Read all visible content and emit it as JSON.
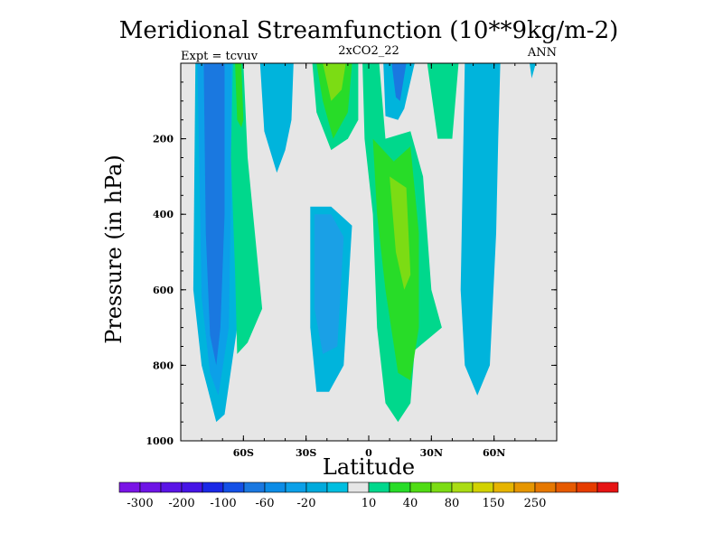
{
  "chart_data": {
    "type": "heatmap",
    "title": "Meridional Streamfunction (10**9kg/m-2)",
    "subtitle_left": "Expt = tcvuv",
    "subtitle_center": "2xCO2_22",
    "subtitle_right": "ANN",
    "xlabel": "Latitude",
    "ylabel": "Pressure (in hPa)",
    "xlim": [
      -90,
      90
    ],
    "ylim": [
      1000,
      0
    ],
    "y_reversed": true,
    "x_ticks": [
      {
        "value": -60,
        "label": "60S"
      },
      {
        "value": -30,
        "label": "30S"
      },
      {
        "value": 0,
        "label": "0"
      },
      {
        "value": 30,
        "label": "30N"
      },
      {
        "value": 60,
        "label": "60N"
      }
    ],
    "y_ticks": [
      {
        "value": 200,
        "label": "200"
      },
      {
        "value": 400,
        "label": "400"
      },
      {
        "value": 600,
        "label": "600"
      },
      {
        "value": 800,
        "label": "800"
      },
      {
        "value": 1000,
        "label": "1000"
      }
    ],
    "background_color": "#e6e6e6",
    "contour_regions": [
      {
        "level": -40,
        "color": "#00b4dc",
        "points": [
          [
            -83,
            0
          ],
          [
            -64,
            0
          ],
          [
            -63,
            300
          ],
          [
            -63,
            700
          ],
          [
            -69,
            930
          ],
          [
            -73,
            950
          ],
          [
            -80,
            800
          ],
          [
            -84,
            600
          ]
        ]
      },
      {
        "level": -60,
        "color": "#0ca0e8",
        "points": [
          [
            -82,
            0
          ],
          [
            -66,
            0
          ],
          [
            -66,
            350
          ],
          [
            -67,
            700
          ],
          [
            -72,
            880
          ],
          [
            -76,
            820
          ],
          [
            -80,
            620
          ]
        ]
      },
      {
        "level": -100,
        "color": "#1a78e0",
        "points": [
          [
            -79,
            0
          ],
          [
            -69,
            0
          ],
          [
            -69,
            400
          ],
          [
            -71,
            700
          ],
          [
            -73,
            800
          ],
          [
            -76,
            720
          ],
          [
            -78,
            450
          ]
        ]
      },
      {
        "level": 10,
        "color": "#00d88c",
        "points": [
          [
            -65,
            0
          ],
          [
            -60,
            0
          ],
          [
            -58,
            250
          ],
          [
            -51,
            650
          ],
          [
            -58,
            740
          ],
          [
            -63,
            770
          ],
          [
            -64,
            550
          ],
          [
            -66,
            250
          ]
        ]
      },
      {
        "level": 20,
        "color": "#28dc28",
        "points": [
          [
            -64,
            0
          ],
          [
            -61,
            0
          ],
          [
            -60,
            150
          ],
          [
            -61,
            170
          ],
          [
            -63,
            150
          ]
        ]
      },
      {
        "level": -20,
        "color": "#00b4dc",
        "points": [
          [
            -52,
            0
          ],
          [
            -36,
            0
          ],
          [
            -37,
            150
          ],
          [
            -40,
            230
          ],
          [
            -44,
            290
          ],
          [
            -50,
            180
          ]
        ]
      },
      {
        "level": -20,
        "color": "#00b4dc",
        "points": [
          [
            -28,
            380
          ],
          [
            -18,
            380
          ],
          [
            -8,
            430
          ],
          [
            -12,
            800
          ],
          [
            -19,
            870
          ],
          [
            -25,
            870
          ],
          [
            -28,
            700
          ],
          [
            -28,
            500
          ]
        ]
      },
      {
        "level": -40,
        "color": "#1aa0e6",
        "points": [
          [
            -26,
            400
          ],
          [
            -18,
            400
          ],
          [
            -12,
            460
          ],
          [
            -15,
            750
          ],
          [
            -22,
            770
          ],
          [
            -26,
            650
          ]
        ]
      },
      {
        "level": 10,
        "color": "#00d88c",
        "points": [
          [
            -27,
            0
          ],
          [
            -5,
            0
          ],
          [
            -5,
            150
          ],
          [
            -10,
            200
          ],
          [
            -18,
            230
          ],
          [
            -25,
            130
          ]
        ]
      },
      {
        "level": 20,
        "color": "#28dc28",
        "points": [
          [
            -25,
            0
          ],
          [
            -8,
            0
          ],
          [
            -10,
            130
          ],
          [
            -17,
            200
          ],
          [
            -22,
            100
          ]
        ]
      },
      {
        "level": 40,
        "color": "#7cdc14",
        "points": [
          [
            -22,
            0
          ],
          [
            -11,
            0
          ],
          [
            -13,
            70
          ],
          [
            -18,
            100
          ]
        ]
      },
      {
        "level": -20,
        "color": "#00b4dc",
        "points": [
          [
            7,
            0
          ],
          [
            22,
            0
          ],
          [
            17,
            120
          ],
          [
            14,
            150
          ],
          [
            8,
            140
          ]
        ]
      },
      {
        "level": -60,
        "color": "#1a78e0",
        "points": [
          [
            11,
            0
          ],
          [
            18,
            0
          ],
          [
            15,
            100
          ],
          [
            13,
            90
          ]
        ]
      },
      {
        "level": 10,
        "color": "#00d88c",
        "points": [
          [
            -3,
            0
          ],
          [
            5,
            0
          ],
          [
            8,
            200
          ],
          [
            20,
            180
          ],
          [
            26,
            300
          ],
          [
            30,
            600
          ],
          [
            35,
            700
          ],
          [
            22,
            760
          ],
          [
            20,
            900
          ],
          [
            14,
            950
          ],
          [
            8,
            900
          ],
          [
            4,
            700
          ],
          [
            2,
            400
          ],
          [
            -2,
            200
          ]
        ]
      },
      {
        "level": 20,
        "color": "#28dc28",
        "points": [
          [
            2,
            200
          ],
          [
            12,
            260
          ],
          [
            20,
            220
          ],
          [
            24,
            450
          ],
          [
            24,
            700
          ],
          [
            20,
            840
          ],
          [
            14,
            820
          ],
          [
            8,
            600
          ],
          [
            4,
            400
          ]
        ]
      },
      {
        "level": 40,
        "color": "#7cdc14",
        "points": [
          [
            10,
            300
          ],
          [
            18,
            330
          ],
          [
            20,
            560
          ],
          [
            17,
            600
          ],
          [
            13,
            500
          ]
        ]
      },
      {
        "level": 10,
        "color": "#00d88c",
        "points": [
          [
            28,
            0
          ],
          [
            43,
            0
          ],
          [
            40,
            200
          ],
          [
            33,
            200
          ]
        ]
      },
      {
        "level": -20,
        "color": "#00b4dc",
        "points": [
          [
            46,
            0
          ],
          [
            63,
            0
          ],
          [
            62,
            200
          ],
          [
            61,
            450
          ],
          [
            58,
            800
          ],
          [
            52,
            880
          ],
          [
            46,
            800
          ],
          [
            44,
            600
          ],
          [
            45,
            300
          ]
        ]
      },
      {
        "level": -20,
        "color": "#00b4dc",
        "points": [
          [
            77,
            0
          ],
          [
            80,
            0
          ],
          [
            78,
            40
          ]
        ]
      }
    ],
    "colorbar": {
      "colors": [
        "#7a14e6",
        "#6e14e6",
        "#5a14e6",
        "#4614e6",
        "#1a28e6",
        "#1450e6",
        "#1a78e0",
        "#0c8ce6",
        "#0ca0e8",
        "#00aadc",
        "#00bee0",
        "#e6e6e6",
        "#00d88c",
        "#28dc28",
        "#50dc14",
        "#7cdc14",
        "#aadc14",
        "#d2d200",
        "#e6b400",
        "#e69600",
        "#e67800",
        "#e65a00",
        "#e63c00",
        "#e61414"
      ],
      "labels": [
        {
          "after_box": 1,
          "text": "-300"
        },
        {
          "after_box": 3,
          "text": "-200"
        },
        {
          "after_box": 5,
          "text": "-100"
        },
        {
          "after_box": 7,
          "text": "-60"
        },
        {
          "after_box": 9,
          "text": "-20"
        },
        {
          "after_box": 12,
          "text": "10"
        },
        {
          "after_box": 14,
          "text": "40"
        },
        {
          "after_box": 16,
          "text": "80"
        },
        {
          "after_box": 18,
          "text": "150"
        },
        {
          "after_box": 20,
          "text": "250"
        }
      ]
    }
  }
}
